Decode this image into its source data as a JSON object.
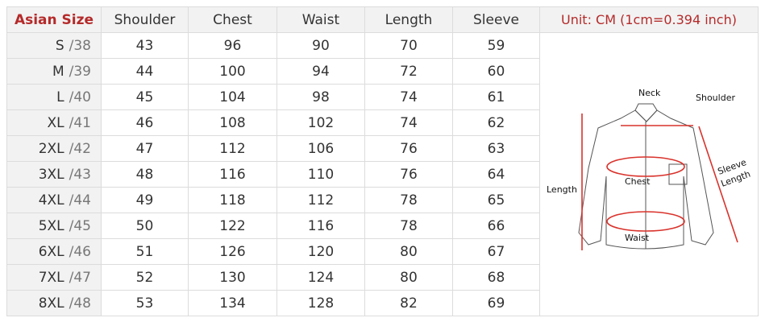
{
  "table": {
    "headers": [
      "Asian Size",
      "Shoulder",
      "Chest",
      "Waist",
      "Length",
      "Sleeve"
    ],
    "unit_note": "Unit: CM (1cm=0.394 inch)",
    "rows": [
      {
        "size": "S",
        "eu": "/38",
        "values": [
          "43",
          "96",
          "90",
          "70",
          "59"
        ]
      },
      {
        "size": "M",
        "eu": "/39",
        "values": [
          "44",
          "100",
          "94",
          "72",
          "60"
        ]
      },
      {
        "size": "L",
        "eu": "/40",
        "values": [
          "45",
          "104",
          "98",
          "74",
          "61"
        ]
      },
      {
        "size": "XL",
        "eu": "/41",
        "values": [
          "46",
          "108",
          "102",
          "74",
          "62"
        ]
      },
      {
        "size": "2XL",
        "eu": "/42",
        "values": [
          "47",
          "112",
          "106",
          "76",
          "63"
        ]
      },
      {
        "size": "3XL",
        "eu": "/43",
        "values": [
          "48",
          "116",
          "110",
          "76",
          "64"
        ]
      },
      {
        "size": "4XL",
        "eu": "/44",
        "values": [
          "49",
          "118",
          "112",
          "78",
          "65"
        ]
      },
      {
        "size": "5XL",
        "eu": "/45",
        "values": [
          "50",
          "122",
          "116",
          "78",
          "66"
        ]
      },
      {
        "size": "6XL",
        "eu": "/46",
        "values": [
          "51",
          "126",
          "120",
          "80",
          "67"
        ]
      },
      {
        "size": "7XL",
        "eu": "/47",
        "values": [
          "52",
          "130",
          "124",
          "80",
          "68"
        ]
      },
      {
        "size": "8XL",
        "eu": "/48",
        "values": [
          "53",
          "134",
          "128",
          "82",
          "69"
        ]
      }
    ]
  },
  "diagram": {
    "labels": {
      "neck": "Neck",
      "shoulder": "Shoulder",
      "chest": "Chest",
      "waist": "Waist",
      "length": "Length",
      "sleeve1": "Sleeve",
      "sleeve2": "Length"
    },
    "accent_color": "#d9322b",
    "header_accent": "#b52a2a"
  }
}
